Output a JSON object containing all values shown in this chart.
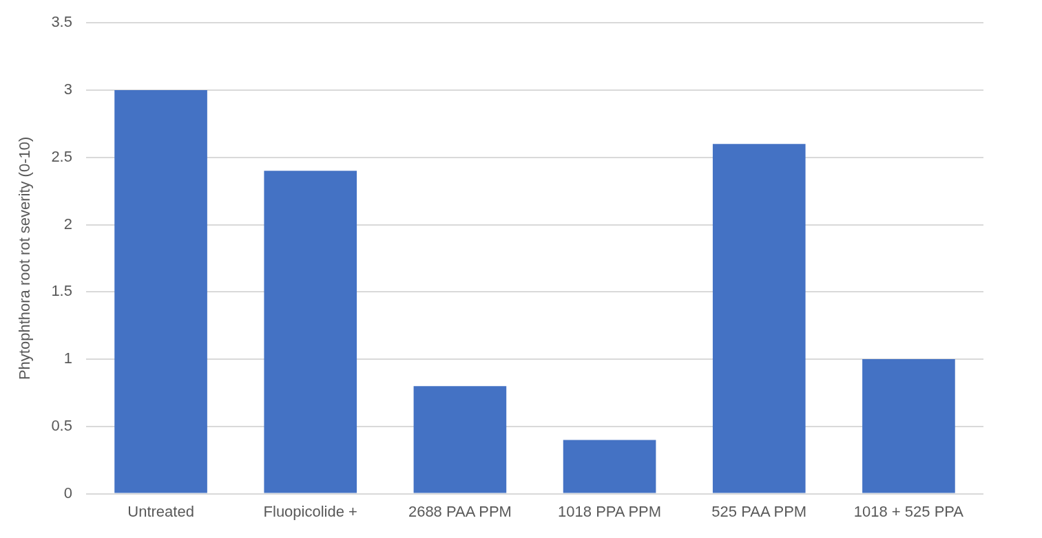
{
  "chart_data": {
    "type": "bar",
    "ylabel": "Phytophthora root rot severity (0-10)",
    "categories": [
      "Untreated",
      "Fluopicolide +",
      "2688 PAA PPM",
      "1018 PPA PPM",
      "525 PAA PPM",
      "1018 + 525 PPA"
    ],
    "values": [
      3,
      2.4,
      0.8,
      0.4,
      2.6,
      1
    ],
    "color": "#4472c4",
    "ylim": [
      0,
      3.5
    ],
    "yticks": [
      0,
      0.5,
      1,
      1.5,
      2,
      2.5,
      3,
      3.5
    ],
    "grid": "y"
  }
}
